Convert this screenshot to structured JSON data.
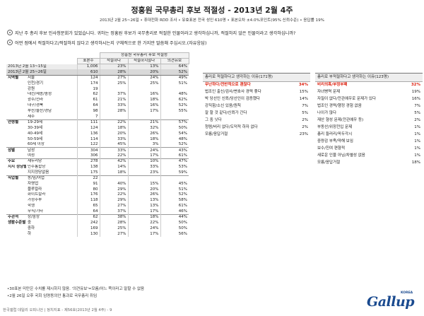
{
  "title": "정홍원 국무총리 후보 적절성 - 2013년 2월 4주",
  "meta": "2013년 2월 25~26일 • 휴대전화 RDD 조사 • 유효표본 전국 성인 610명 • 표본오차 ±4.0%포인트(95% 신뢰수준) • 응답률 19%",
  "questions": [
    "지난 주 총리 후보 인사청문회가 있었습니다. 귀하는 정홍원 후보가 국무총리로 적절한 인물이라고 생각하십니까, 적절하지 않은 인물이라고 생각하십니까?",
    "어떤 점에서 적절하다고/적절하지 않다고 생각하시는지 구체적으로 한 가지만 말씀해 주십시오.(자유응답)"
  ],
  "table": {
    "group_header": "정홍원 국무총리 후보 적절성",
    "columns": [
      "표본수",
      "적절하다",
      "적절하지않다",
      "의견유보"
    ],
    "totals": [
      {
        "label": "2013년 2월 13~15일",
        "values": [
          "1,006",
          "23%",
          "13%",
          "64%"
        ]
      },
      {
        "label": "2013년 2월 25~26일",
        "values": [
          "610",
          "28%",
          "20%",
          "52%"
        ]
      }
    ],
    "rows": [
      {
        "group": "지역별",
        "sub": "서울",
        "values": [
          "124",
          "27%",
          "24%",
          "49%"
        ],
        "sep": true
      },
      {
        "group": "",
        "sub": "인천/경기",
        "values": [
          "174",
          "25%",
          "25%",
          "51%"
        ]
      },
      {
        "group": "",
        "sub": "강원",
        "values": [
          "19",
          "",
          "",
          ""
        ]
      },
      {
        "group": "",
        "sub": "대전/세종/충청",
        "values": [
          "62",
          "37%",
          "16%",
          "48%"
        ]
      },
      {
        "group": "",
        "sub": "광주/전라",
        "values": [
          "61",
          "21%",
          "18%",
          "62%"
        ]
      },
      {
        "group": "",
        "sub": "대구/경북",
        "values": [
          "64",
          "33%",
          "16%",
          "52%"
        ]
      },
      {
        "group": "",
        "sub": "부산/울산/경남",
        "values": [
          "98",
          "28%",
          "17%",
          "55%"
        ]
      },
      {
        "group": "",
        "sub": "제주",
        "values": [
          "7",
          "",
          "",
          ""
        ]
      },
      {
        "group": "연령별",
        "sub": "19-29세",
        "values": [
          "111",
          "22%",
          "21%",
          "57%"
        ],
        "sep": true
      },
      {
        "group": "",
        "sub": "30-39세",
        "values": [
          "124",
          "18%",
          "32%",
          "50%"
        ]
      },
      {
        "group": "",
        "sub": "40-49세",
        "values": [
          "136",
          "20%",
          "26%",
          "54%"
        ]
      },
      {
        "group": "",
        "sub": "50-59세",
        "values": [
          "114",
          "33%",
          "18%",
          "48%"
        ]
      },
      {
        "group": "",
        "sub": "60세 이상",
        "values": [
          "122",
          "45%",
          "3%",
          "52%"
        ]
      },
      {
        "group": "성별",
        "sub": "남성",
        "values": [
          "304",
          "33%",
          "24%",
          "43%"
        ],
        "sep": true
      },
      {
        "group": "",
        "sub": "여성",
        "values": [
          "306",
          "22%",
          "17%",
          "61%"
        ]
      },
      {
        "group": "주요",
        "sub": "새누리당",
        "values": [
          "278",
          "42%",
          "10%",
          "47%"
        ],
        "sep": true
      },
      {
        "group": "지지 정당별",
        "sub": "민주통합당",
        "values": [
          "138",
          "14%",
          "33%",
          "53%"
        ]
      },
      {
        "group": "",
        "sub": "지지정당없음",
        "values": [
          "175",
          "18%",
          "23%",
          "59%"
        ]
      },
      {
        "group": "직업별",
        "sub": "농/임/어업",
        "values": [
          "22",
          "",
          "",
          ""
        ],
        "sep": true
      },
      {
        "group": "",
        "sub": "자영업",
        "values": [
          "91",
          "40%",
          "15%",
          "45%"
        ]
      },
      {
        "group": "",
        "sub": "블루칼라",
        "values": [
          "80",
          "29%",
          "20%",
          "51%"
        ]
      },
      {
        "group": "",
        "sub": "화이트칼라",
        "values": [
          "176",
          "22%",
          "26%",
          "52%"
        ]
      },
      {
        "group": "",
        "sub": "가정주부",
        "values": [
          "118",
          "29%",
          "13%",
          "58%"
        ]
      },
      {
        "group": "",
        "sub": "학생",
        "values": [
          "65",
          "27%",
          "13%",
          "61%"
        ]
      },
      {
        "group": "",
        "sub": "무직/기타",
        "values": [
          "64",
          "37%",
          "17%",
          "46%"
        ]
      },
      {
        "group": "주관적",
        "sub": "상/중상",
        "values": [
          "62",
          "38%",
          "18%",
          "44%"
        ],
        "sep": true
      },
      {
        "group": "생활수준별",
        "sub": "중",
        "values": [
          "242",
          "28%",
          "22%",
          "50%"
        ]
      },
      {
        "group": "",
        "sub": "중하",
        "values": [
          "169",
          "25%",
          "24%",
          "50%"
        ]
      },
      {
        "group": "",
        "sub": "하",
        "values": [
          "130",
          "27%",
          "17%",
          "56%"
        ]
      }
    ]
  },
  "side_tables": [
    {
      "header": "총리로 적절하다고 생각하는 이유(171명)",
      "items": [
        {
          "label": "무난하다/전반적으로 괜찮다",
          "value": "34%",
          "highlight": true
        },
        {
          "label": "법조인 출신/검사/변호사 경력 좋다",
          "value": "15%"
        },
        {
          "label": "박 당선인 신뢰/당선인이 검증했다",
          "value": "14%"
        },
        {
          "label": "강직함/소신 있음/원칙",
          "value": "7%"
        },
        {
          "label": "잘 할 것 같다/신뢰가 간다",
          "value": "5%"
        },
        {
          "label": "그 중 낫다",
          "value": "2%"
        },
        {
          "label": "청렴/비리 없다/도덕적 하자 없다",
          "value": "2%"
        },
        {
          "label": "모름/응답거절",
          "value": "23%"
        }
      ]
    },
    {
      "header": "총리로 부적절하다고 생각하는 이유(123명)",
      "items": [
        {
          "label": "비리의혹/부정부패",
          "value": "32%",
          "highlight": true
        },
        {
          "label": "자녀병역 문제",
          "value": "19%"
        },
        {
          "label": "자질이 없다/전관예우로 문제가 있다",
          "value": "16%"
        },
        {
          "label": "법조인 경력/행정 경험 없음",
          "value": "7%"
        },
        {
          "label": "나이가 많다",
          "value": "5%"
        },
        {
          "label": "재산 형성 문제(전관예우 등)",
          "value": "2%"
        },
        {
          "label": "부동산/위장전입 문제",
          "value": "1%"
        },
        {
          "label": "총리 들러리/꼭두각시",
          "value": "1%"
        },
        {
          "label": "중량감 부족/약해 보임",
          "value": "1%"
        },
        {
          "label": "보수/친여 편향적",
          "value": "1%"
        },
        {
          "label": "새로운 인물 아님/차별성 없음",
          "value": "1%"
        },
        {
          "label": "모름/응답거절",
          "value": "18%"
        }
      ]
    }
  ],
  "notes": [
    "•30표본 미만은 수치를 제시하지 않음. '의견유보'=모름/어느 쪽이라고 말할 수 없음",
    "•2월 26일 오후 국회 임명동의안 통과로 국무총리 취임"
  ],
  "footer": "한국갤럽 데일리 오피니언 | 정치지표 - 제56호(2013년 2월 4주) - 9",
  "logo": {
    "text": "Gallup",
    "korea": "KOREA"
  }
}
